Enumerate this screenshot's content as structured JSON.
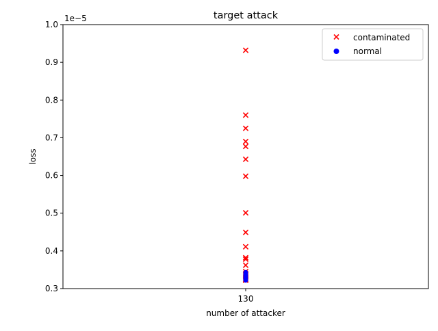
{
  "chart_data": {
    "type": "scatter",
    "title": "target attack",
    "xlabel": "number of attacker",
    "ylabel": "loss",
    "y_offset_label": "1e−5",
    "x_ticks": [
      "130"
    ],
    "y_ticks": [
      "0.3",
      "0.4",
      "0.5",
      "0.6",
      "0.7",
      "0.8",
      "0.9",
      "1.0"
    ],
    "ylim": [
      0.3,
      1.0
    ],
    "legend_position": "top-right",
    "series": [
      {
        "name": "contaminated",
        "marker": "x",
        "color": "#ff0000",
        "x": [
          130,
          130,
          130,
          130,
          130,
          130,
          130,
          130,
          130,
          130,
          130,
          130,
          130,
          130,
          130,
          130,
          130,
          130,
          130,
          130,
          130,
          130
        ],
        "y": [
          0.932,
          0.76,
          0.725,
          0.69,
          0.677,
          0.643,
          0.598,
          0.501,
          0.449,
          0.411,
          0.382,
          0.378,
          0.362,
          0.345,
          0.34,
          0.337,
          0.334,
          0.331,
          0.328,
          0.325,
          0.323,
          0.322
        ]
      },
      {
        "name": "normal",
        "marker": "o",
        "color": "#0000ff",
        "x": [
          130,
          130,
          130,
          130,
          130,
          130,
          130,
          130
        ],
        "y": [
          0.343,
          0.338,
          0.335,
          0.331,
          0.328,
          0.326,
          0.324,
          0.322
        ]
      }
    ]
  }
}
